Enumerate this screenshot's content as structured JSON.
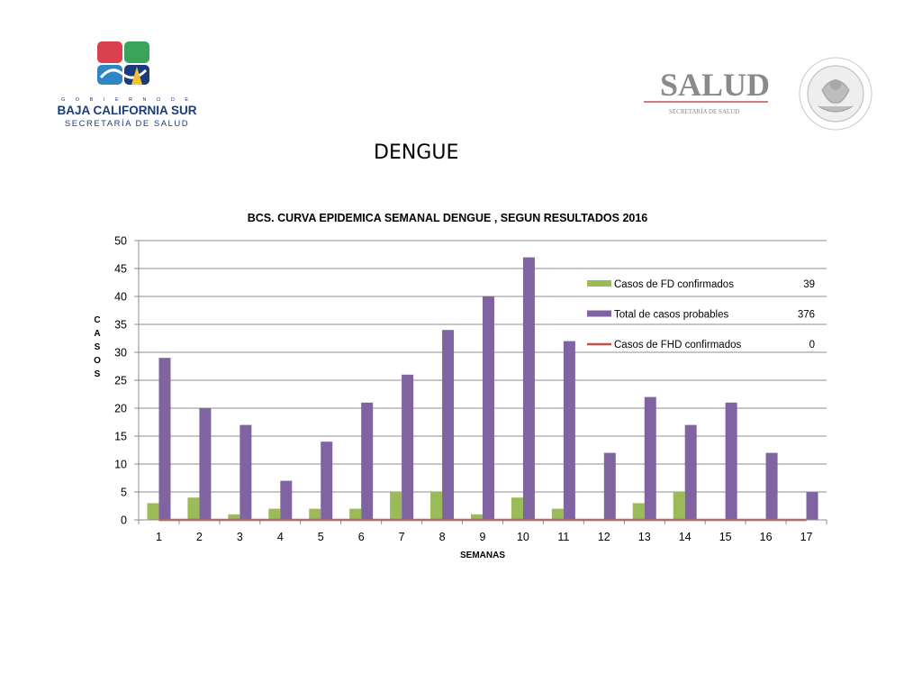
{
  "header": {
    "left_logo": {
      "top_text": "G O B I E R N O   D E",
      "main_text": "BAJA CALIFORNIA SUR",
      "sub_text": "SECRETARÍA DE SALUD",
      "colors": {
        "navy": "#1b3b7a",
        "red": "#d9414f",
        "green": "#3aa55a",
        "teal": "#1f7a6e"
      }
    },
    "right_logo": {
      "main_text": "SALUD",
      "sub_text": "SECRETARÍA DE SALUD",
      "seal_text": "ESTADOS UNIDOS MEXICANOS",
      "color": "#808080"
    },
    "page_title": "DENGUE"
  },
  "chart_data": {
    "type": "bar",
    "title": "BCS. CURVA EPIDEMICA SEMANAL DENGUE , SEGUN RESULTADOS 2016",
    "xlabel": "SEMANAS",
    "ylabel": "CASOS",
    "ylim": [
      0,
      50
    ],
    "yticks": [
      0,
      5,
      10,
      15,
      20,
      25,
      30,
      35,
      40,
      45,
      50
    ],
    "categories": [
      "1",
      "2",
      "3",
      "4",
      "5",
      "6",
      "7",
      "8",
      "9",
      "10",
      "11",
      "12",
      "13",
      "14",
      "15",
      "16",
      "17"
    ],
    "grid": true,
    "legend_position": "top-right",
    "series": [
      {
        "name": "Casos de FD confirmados",
        "type": "bar",
        "color": "#9bbb59",
        "total": "39",
        "values": [
          3,
          4,
          1,
          2,
          2,
          2,
          5,
          5,
          1,
          4,
          2,
          0,
          3,
          5,
          0,
          0,
          0
        ]
      },
      {
        "name": "Total de casos probables",
        "type": "bar",
        "color": "#8064a2",
        "total": "376",
        "values": [
          29,
          20,
          17,
          7,
          14,
          21,
          26,
          34,
          40,
          47,
          32,
          12,
          22,
          17,
          21,
          12,
          5
        ]
      },
      {
        "name": "Casos de FHD confirmados",
        "type": "line",
        "color": "#c0504d",
        "total": "0",
        "values": [
          0,
          0,
          0,
          0,
          0,
          0,
          0,
          0,
          0,
          0,
          0,
          0,
          0,
          0,
          0,
          0,
          0
        ]
      }
    ]
  }
}
